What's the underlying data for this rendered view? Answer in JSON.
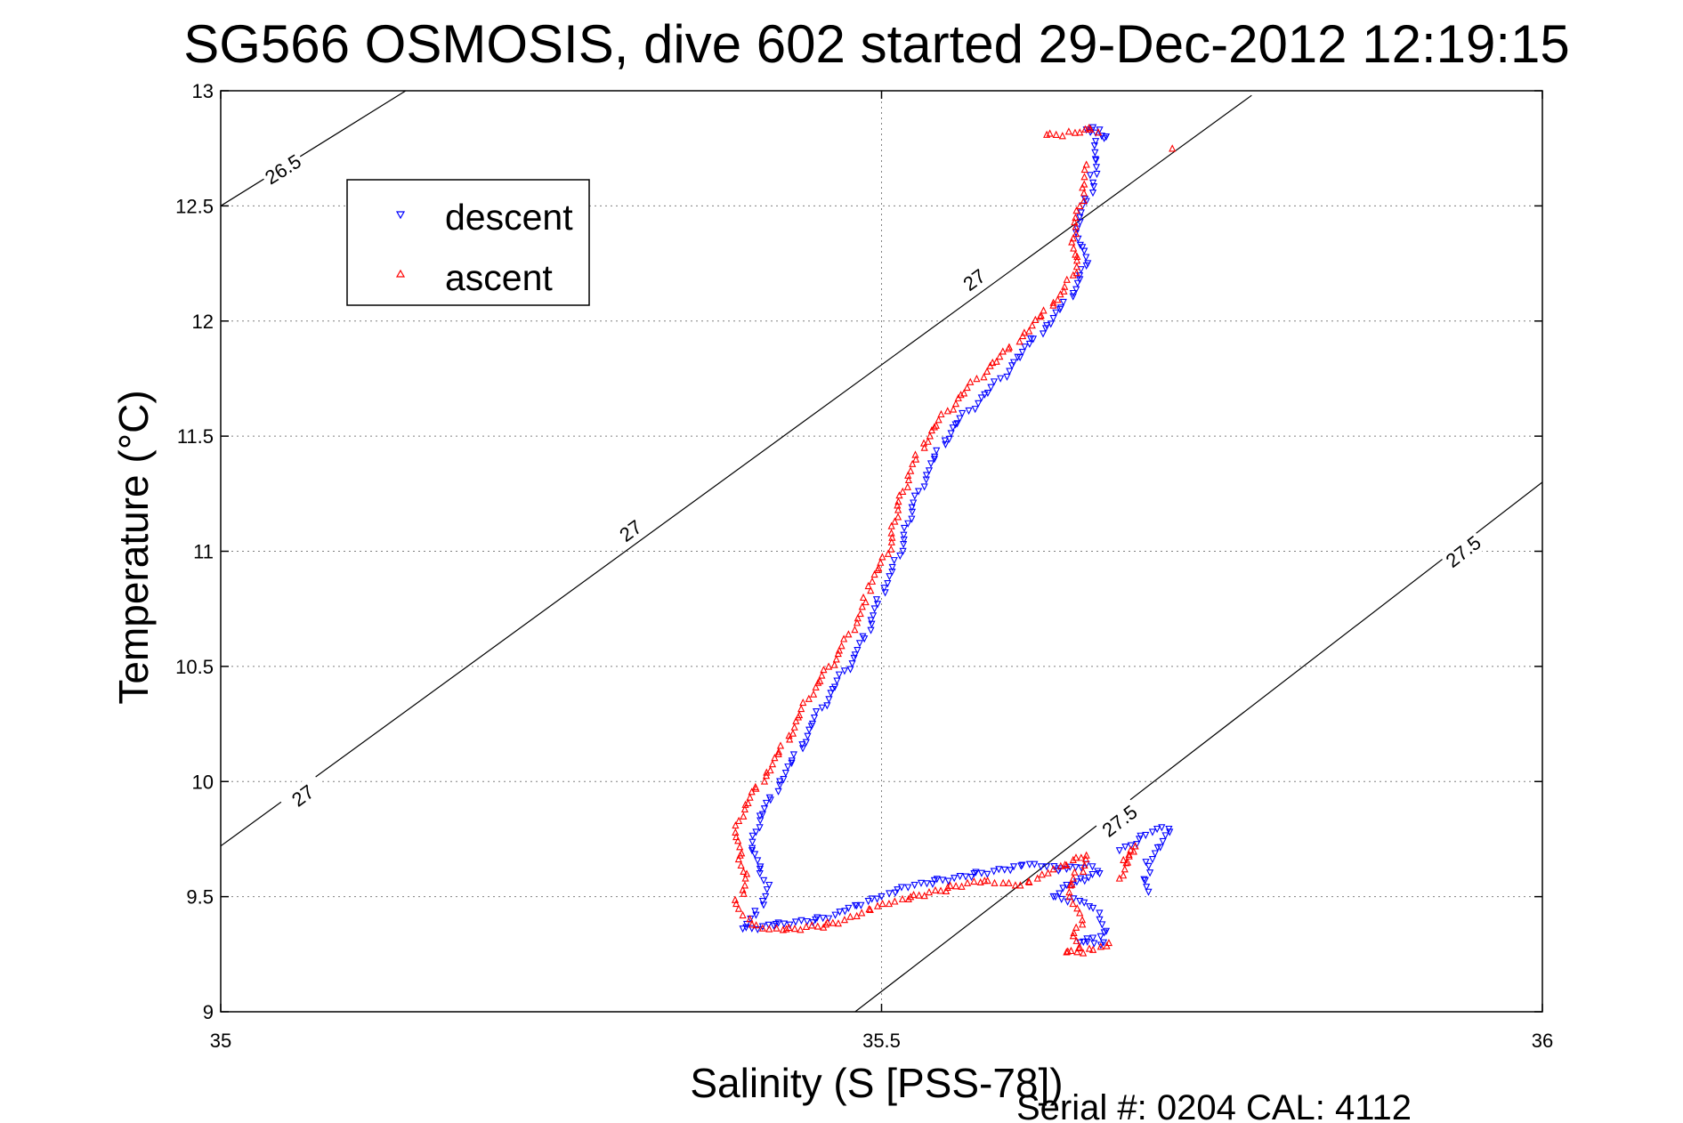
{
  "chart_data": {
    "type": "scatter",
    "title": "SG566 OSMOSIS, dive 602 started 29-Dec-2012 12:19:15",
    "xlabel": "Salinity (S [PSS-78])",
    "ylabel": "Temperature (°C)",
    "xlim": [
      35,
      36
    ],
    "ylim": [
      9,
      13
    ],
    "xticks": [
      35,
      35.5,
      36
    ],
    "yticks": [
      9,
      9.5,
      10,
      10.5,
      11,
      11.5,
      12,
      12.5,
      13
    ],
    "xtick_labels": [
      "35",
      "35.5",
      "36"
    ],
    "ytick_labels": [
      "9",
      "9.5",
      "10",
      "10.5",
      "11",
      "11.5",
      "12",
      "12.5",
      "13"
    ],
    "grid": true,
    "legend_position": "top-left",
    "footer": "Serial #: 0204  CAL: 4112",
    "colors": {
      "descent": "#0000ff",
      "ascent": "#ff0000",
      "contour": "#000000",
      "grid": "#808080"
    },
    "contours": [
      {
        "label": "26.5",
        "points": [
          [
            35.0,
            12.5
          ],
          [
            35.14,
            13.0
          ]
        ],
        "label_positions": [
          [
            35.047,
            12.66
          ]
        ]
      },
      {
        "label": "27",
        "points": [
          [
            35.0,
            9.72
          ],
          [
            35.78,
            12.98
          ]
        ],
        "label_positions": [
          [
            35.062,
            9.94
          ],
          [
            35.31,
            11.09
          ],
          [
            35.57,
            12.18
          ]
        ]
      },
      {
        "label": "27.5",
        "points": [
          [
            35.48,
            9.0
          ],
          [
            36.0,
            11.3
          ]
        ],
        "label_positions": [
          [
            35.68,
            9.83
          ],
          [
            35.94,
            11.0
          ]
        ]
      }
    ],
    "series": [
      {
        "name": "descent",
        "marker": "triangle-down",
        "points": [
          [
            35.655,
            12.83
          ],
          [
            35.66,
            12.84
          ],
          [
            35.665,
            12.83
          ],
          [
            35.658,
            12.82
          ],
          [
            35.67,
            12.8
          ],
          [
            35.662,
            12.78
          ],
          [
            35.66,
            12.6
          ],
          [
            35.655,
            12.52
          ],
          [
            35.65,
            12.45
          ],
          [
            35.648,
            12.4
          ],
          [
            35.652,
            12.32
          ],
          [
            35.655,
            12.24
          ],
          [
            35.65,
            12.18
          ],
          [
            35.645,
            12.12
          ],
          [
            35.635,
            12.05
          ],
          [
            35.625,
            11.98
          ],
          [
            35.612,
            11.9
          ],
          [
            35.6,
            11.82
          ],
          [
            35.59,
            11.75
          ],
          [
            35.578,
            11.68
          ],
          [
            35.566,
            11.61
          ],
          [
            35.556,
            11.55
          ],
          [
            35.548,
            11.48
          ],
          [
            35.54,
            11.4
          ],
          [
            35.534,
            11.33
          ],
          [
            35.528,
            11.26
          ],
          [
            35.523,
            11.19
          ],
          [
            35.52,
            11.12
          ],
          [
            35.517,
            11.05
          ],
          [
            35.514,
            10.98
          ],
          [
            35.508,
            10.91
          ],
          [
            35.502,
            10.84
          ],
          [
            35.497,
            10.77
          ],
          [
            35.492,
            10.7
          ],
          [
            35.487,
            10.62
          ],
          [
            35.48,
            10.55
          ],
          [
            35.472,
            10.48
          ],
          [
            35.463,
            10.4
          ],
          [
            35.455,
            10.32
          ],
          [
            35.447,
            10.24
          ],
          [
            35.44,
            10.16
          ],
          [
            35.432,
            10.08
          ],
          [
            35.423,
            10.0
          ],
          [
            35.416,
            9.92
          ],
          [
            35.408,
            9.85
          ],
          [
            35.405,
            9.78
          ],
          [
            35.402,
            9.7
          ],
          [
            35.408,
            9.62
          ],
          [
            35.415,
            9.55
          ],
          [
            35.41,
            9.48
          ],
          [
            35.405,
            9.42
          ],
          [
            35.398,
            9.38
          ],
          [
            35.395,
            9.36
          ],
          [
            35.41,
            9.37
          ],
          [
            35.42,
            9.38
          ],
          [
            35.435,
            9.39
          ],
          [
            35.45,
            9.4
          ],
          [
            35.465,
            9.42
          ],
          [
            35.475,
            9.45
          ],
          [
            35.49,
            9.48
          ],
          [
            35.5,
            9.5
          ],
          [
            35.512,
            9.53
          ],
          [
            35.525,
            9.55
          ],
          [
            35.54,
            9.57
          ],
          [
            35.555,
            9.58
          ],
          [
            35.57,
            9.6
          ],
          [
            35.585,
            9.61
          ],
          [
            35.6,
            9.63
          ],
          [
            35.612,
            9.64
          ],
          [
            35.625,
            9.63
          ],
          [
            35.64,
            9.62
          ],
          [
            35.655,
            9.64
          ],
          [
            35.665,
            9.6
          ],
          [
            35.64,
            9.55
          ],
          [
            35.63,
            9.5
          ],
          [
            35.65,
            9.48
          ],
          [
            35.66,
            9.45
          ],
          [
            35.665,
            9.4
          ],
          [
            35.67,
            9.35
          ],
          [
            35.66,
            9.32
          ],
          [
            35.65,
            9.3
          ],
          [
            35.668,
            9.3
          ],
          [
            35.68,
            9.7
          ],
          [
            35.695,
            9.75
          ],
          [
            35.705,
            9.78
          ],
          [
            35.712,
            9.8
          ],
          [
            35.718,
            9.78
          ],
          [
            35.7,
            9.65
          ],
          [
            35.702,
            9.52
          ]
        ]
      },
      {
        "name": "ascent",
        "marker": "triangle-up",
        "points": [
          [
            35.625,
            12.81
          ],
          [
            35.65,
            12.82
          ],
          [
            35.657,
            12.84
          ],
          [
            35.664,
            12.82
          ],
          [
            35.72,
            12.75
          ],
          [
            35.655,
            12.68
          ],
          [
            35.652,
            12.58
          ],
          [
            35.65,
            12.5
          ],
          [
            35.646,
            12.43
          ],
          [
            35.645,
            12.36
          ],
          [
            35.648,
            12.28
          ],
          [
            35.645,
            12.2
          ],
          [
            35.638,
            12.13
          ],
          [
            35.63,
            12.08
          ],
          [
            35.62,
            12.02
          ],
          [
            35.608,
            11.95
          ],
          [
            35.596,
            11.88
          ],
          [
            35.584,
            11.82
          ],
          [
            35.572,
            11.75
          ],
          [
            35.56,
            11.68
          ],
          [
            35.55,
            11.61
          ],
          [
            35.54,
            11.54
          ],
          [
            35.532,
            11.47
          ],
          [
            35.526,
            11.4
          ],
          [
            35.52,
            11.33
          ],
          [
            35.516,
            11.26
          ],
          [
            35.512,
            11.2
          ],
          [
            35.51,
            11.13
          ],
          [
            35.508,
            11.06
          ],
          [
            35.505,
            10.99
          ],
          [
            35.497,
            10.92
          ],
          [
            35.49,
            10.85
          ],
          [
            35.488,
            10.78
          ],
          [
            35.482,
            10.71
          ],
          [
            35.475,
            10.64
          ],
          [
            35.468,
            10.57
          ],
          [
            35.46,
            10.5
          ],
          [
            35.452,
            10.43
          ],
          [
            35.445,
            10.36
          ],
          [
            35.437,
            10.28
          ],
          [
            35.43,
            10.2
          ],
          [
            35.422,
            10.12
          ],
          [
            35.413,
            10.04
          ],
          [
            35.405,
            9.97
          ],
          [
            35.397,
            9.9
          ],
          [
            35.392,
            9.83
          ],
          [
            35.39,
            9.76
          ],
          [
            35.393,
            9.68
          ],
          [
            35.398,
            9.6
          ],
          [
            35.395,
            9.53
          ],
          [
            35.39,
            9.47
          ],
          [
            35.395,
            9.42
          ],
          [
            35.402,
            9.38
          ],
          [
            35.415,
            9.36
          ],
          [
            35.428,
            9.36
          ],
          [
            35.443,
            9.37
          ],
          [
            35.458,
            9.38
          ],
          [
            35.472,
            9.4
          ],
          [
            35.485,
            9.43
          ],
          [
            35.497,
            9.46
          ],
          [
            35.51,
            9.48
          ],
          [
            35.522,
            9.5
          ],
          [
            35.536,
            9.52
          ],
          [
            35.55,
            9.54
          ],
          [
            35.565,
            9.56
          ],
          [
            35.578,
            9.57
          ],
          [
            35.592,
            9.56
          ],
          [
            35.605,
            9.55
          ],
          [
            35.618,
            9.58
          ],
          [
            35.63,
            9.62
          ],
          [
            35.645,
            9.66
          ],
          [
            35.655,
            9.68
          ],
          [
            35.642,
            9.52
          ],
          [
            35.648,
            9.45
          ],
          [
            35.652,
            9.38
          ],
          [
            35.645,
            9.33
          ],
          [
            35.65,
            9.28
          ],
          [
            35.64,
            9.26
          ],
          [
            35.66,
            9.27
          ],
          [
            35.672,
            9.3
          ],
          [
            35.683,
            9.66
          ],
          [
            35.692,
            9.72
          ],
          [
            35.68,
            9.58
          ]
        ]
      }
    ]
  }
}
